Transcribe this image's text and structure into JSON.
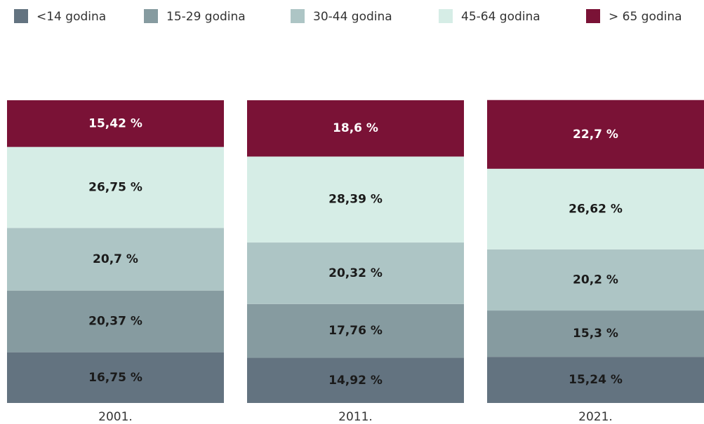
{
  "chart_data": {
    "type": "stacked_bar",
    "categories": [
      "2001.",
      "2011.",
      "2021."
    ],
    "ylim": [
      0,
      100
    ],
    "series": [
      {
        "name": "<14 godina",
        "color": "#637380",
        "values": [
          16.75,
          14.92,
          15.24
        ],
        "value_labels": [
          "16,75 %",
          "14,92 %",
          "15,24 %"
        ]
      },
      {
        "name": "15-29 godina",
        "color": "#869ba0",
        "values": [
          20.37,
          17.76,
          15.3
        ],
        "value_labels": [
          "20,37 %",
          "17,76 %",
          "15,3 %"
        ]
      },
      {
        "name": "30-44 godina",
        "color": "#adc5c5",
        "values": [
          20.7,
          20.32,
          20.2
        ],
        "value_labels": [
          "20,7 %",
          "20,32 %",
          "20,2 %"
        ]
      },
      {
        "name": "45-64 godina",
        "color": "#d6ede6",
        "values": [
          26.75,
          28.39,
          26.62
        ],
        "value_labels": [
          "26,75 %",
          "28,39 %",
          "26,62 %"
        ]
      },
      {
        "name": "> 65 godina",
        "color": "#7a1236",
        "values": [
          15.42,
          18.6,
          22.7
        ],
        "value_labels": [
          "15,42 %",
          "18,6 %",
          "22,7 %"
        ]
      }
    ]
  }
}
